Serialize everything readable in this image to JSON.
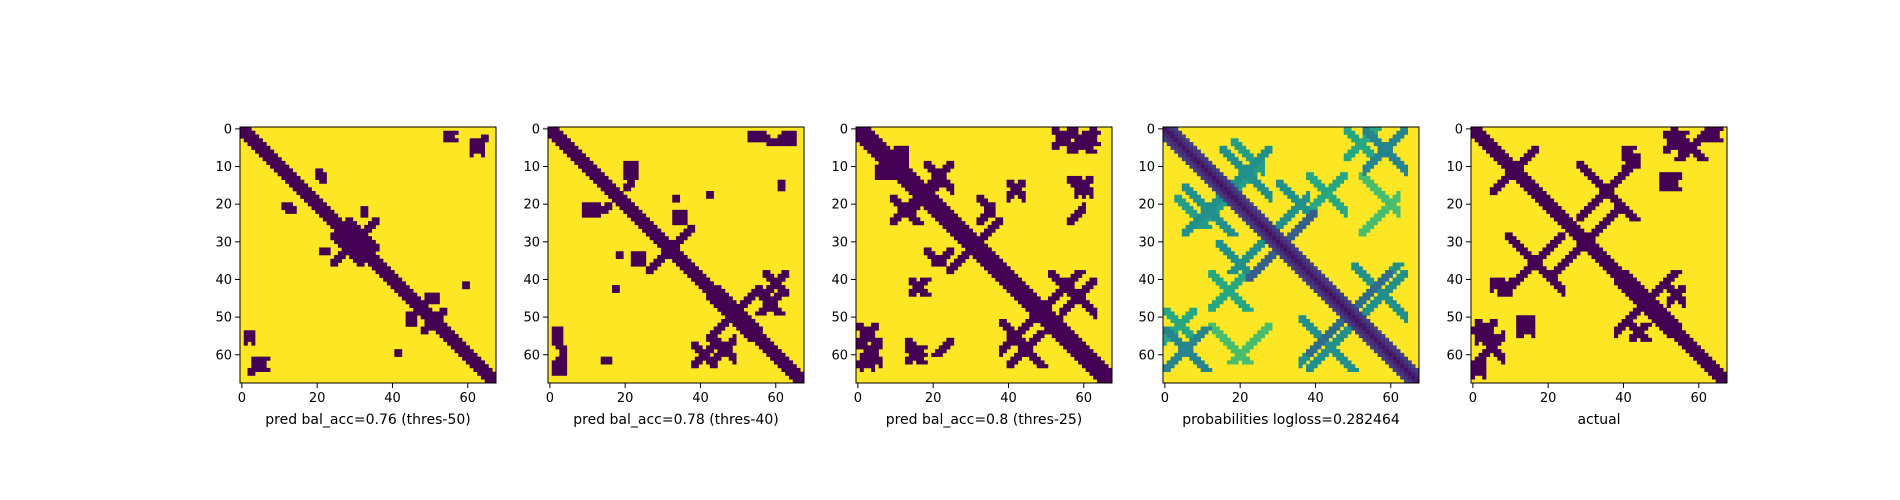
{
  "figure": {
    "background": "#ffffff",
    "colormap": "viridis",
    "colors": {
      "low": "#440154",
      "high": "#fde725",
      "axis": "#000000"
    }
  },
  "chart_data": [
    {
      "type": "heatmap",
      "xlabel": "pred bal_acc=0.76 (thres-50)",
      "grid_size": 68,
      "xlim": [
        -0.5,
        67.5
      ],
      "ylim": [
        67.5,
        -0.5
      ],
      "x_ticks": [
        0,
        20,
        40,
        60
      ],
      "y_ticks": [
        0,
        10,
        20,
        30,
        40,
        50,
        60
      ],
      "binary": true,
      "diagonal_band_width": 2,
      "contact_regions": [
        {
          "i": [
            3,
            14
          ],
          "j": [
            61,
            64
          ],
          "value": 0
        },
        {
          "i": [
            24,
            32
          ],
          "j": [
            28,
            36
          ],
          "value": 0
        },
        {
          "i": [
            12,
            14
          ],
          "j": [
            21,
            22
          ],
          "value": 0
        },
        {
          "i": [
            20,
            21
          ],
          "j": [
            11,
            13
          ],
          "value": 0
        },
        {
          "i": [
            32,
            33
          ],
          "j": [
            21,
            23
          ],
          "value": 0
        },
        {
          "i": [
            48,
            53
          ],
          "j": [
            47,
            54
          ],
          "value": 0
        },
        {
          "i": [
            54,
            57
          ],
          "j": [
            1,
            3
          ],
          "value": 0
        },
        {
          "i": [
            44,
            46
          ],
          "j": [
            49,
            52
          ],
          "value": 0
        },
        {
          "i": [
            59,
            60
          ],
          "j": [
            41,
            42
          ],
          "value": 0
        },
        {
          "i": [
            64,
            65
          ],
          "j": [
            2,
            3
          ],
          "value": 0
        }
      ]
    },
    {
      "type": "heatmap",
      "xlabel": "pred bal_acc=0.78 (thres-40)",
      "grid_size": 68,
      "xlim": [
        -0.5,
        67.5
      ],
      "ylim": [
        67.5,
        -0.5
      ],
      "x_ticks": [
        0,
        20,
        40,
        60
      ],
      "y_ticks": [
        0,
        10,
        20,
        30,
        40,
        50,
        60
      ],
      "binary": true,
      "diagonal_band_width": 2,
      "contact_regions": [
        {
          "i": [
            1,
            4
          ],
          "j": [
            56,
            63
          ],
          "value": 0
        },
        {
          "i": [
            9,
            16
          ],
          "j": [
            20,
            23
          ],
          "value": 0
        },
        {
          "i": [
            20,
            22
          ],
          "j": [
            11,
            16
          ],
          "value": 0
        },
        {
          "i": [
            26,
            33
          ],
          "j": [
            27,
            38
          ],
          "value": 0
        },
        {
          "i": [
            17,
            18
          ],
          "j": [
            42,
            43
          ],
          "value": 0
        },
        {
          "i": [
            33,
            36
          ],
          "j": [
            22,
            25
          ],
          "value": 0
        },
        {
          "i": [
            42,
            56
          ],
          "j": [
            44,
            56
          ],
          "value": 0
        },
        {
          "i": [
            43,
            49
          ],
          "j": [
            55,
            62
          ],
          "value": 0
        },
        {
          "i": [
            57,
            63
          ],
          "j": [
            38,
            44
          ],
          "value": 0
        },
        {
          "i": [
            53,
            57
          ],
          "j": [
            1,
            3
          ],
          "value": 0
        },
        {
          "i": [
            62,
            65
          ],
          "j": [
            1,
            4
          ],
          "value": 0
        },
        {
          "i": [
            33,
            34
          ],
          "j": [
            18,
            19
          ],
          "value": 0
        },
        {
          "i": [
            14,
            16
          ],
          "j": [
            61,
            62
          ],
          "value": 0
        }
      ]
    },
    {
      "type": "heatmap",
      "xlabel": "pred bal_acc=0.8 (thres-25)",
      "grid_size": 68,
      "xlim": [
        -0.5,
        67.5
      ],
      "ylim": [
        67.5,
        -0.5
      ],
      "x_ticks": [
        0,
        20,
        40,
        60
      ],
      "y_ticks": [
        0,
        10,
        20,
        30,
        40,
        50,
        60
      ],
      "binary": true,
      "diagonal_band_width": 3,
      "contact_regions": [
        {
          "i": [
            0,
            6
          ],
          "j": [
            56,
            63
          ],
          "value": 0
        },
        {
          "i": [
            9,
            18
          ],
          "j": [
            18,
            25
          ],
          "value": 0
        },
        {
          "i": [
            19,
            23
          ],
          "j": [
            10,
            17
          ],
          "value": 0
        },
        {
          "i": [
            24,
            35
          ],
          "j": [
            24,
            38
          ],
          "value": 0
        },
        {
          "i": [
            32,
            36
          ],
          "j": [
            18,
            25
          ],
          "value": 0
        },
        {
          "i": [
            14,
            20
          ],
          "j": [
            40,
            44
          ],
          "value": 0
        },
        {
          "i": [
            13,
            20
          ],
          "j": [
            58,
            62
          ],
          "value": 0
        },
        {
          "i": [
            40,
            58
          ],
          "j": [
            40,
            57
          ],
          "value": 0
        },
        {
          "i": [
            40,
            52
          ],
          "j": [
            54,
            63
          ],
          "value": 0
        },
        {
          "i": [
            51,
            62
          ],
          "j": [
            38,
            46
          ],
          "value": 0
        },
        {
          "i": [
            52,
            58
          ],
          "j": [
            0,
            5
          ],
          "value": 0
        },
        {
          "i": [
            60,
            67
          ],
          "j": [
            1,
            4
          ],
          "value": 0
        },
        {
          "i": [
            56,
            60
          ],
          "j": [
            13,
            25
          ],
          "value": 0
        },
        {
          "i": [
            5,
            9
          ],
          "j": [
            10,
            13
          ],
          "value": 0
        }
      ]
    },
    {
      "type": "heatmap",
      "xlabel": "probabilities logloss=0.282464",
      "grid_size": 68,
      "xlim": [
        -0.5,
        67.5
      ],
      "ylim": [
        67.5,
        -0.5
      ],
      "x_ticks": [
        0,
        20,
        40,
        60
      ],
      "y_ticks": [
        0,
        10,
        20,
        30,
        40,
        50,
        60
      ],
      "binary": false,
      "diagonal_band_width": 3,
      "contact_regions": [
        {
          "i": [
            0,
            20
          ],
          "j": [
            53,
            64
          ],
          "value": 0.45
        },
        {
          "i": [
            5,
            22
          ],
          "j": [
            15,
            28
          ],
          "value": 0.5
        },
        {
          "i": [
            18,
            26
          ],
          "j": [
            3,
            17
          ],
          "value": 0.55
        },
        {
          "i": [
            22,
            38
          ],
          "j": [
            22,
            40
          ],
          "value": 0.3
        },
        {
          "i": [
            30,
            38
          ],
          "j": [
            14,
            26
          ],
          "value": 0.5
        },
        {
          "i": [
            12,
            24
          ],
          "j": [
            38,
            48
          ],
          "value": 0.6
        },
        {
          "i": [
            38,
            60
          ],
          "j": [
            38,
            60
          ],
          "value": 0.35
        },
        {
          "i": [
            38,
            52
          ],
          "j": [
            52,
            64
          ],
          "value": 0.5
        },
        {
          "i": [
            50,
            63
          ],
          "j": [
            36,
            48
          ],
          "value": 0.5
        },
        {
          "i": [
            48,
            66
          ],
          "j": [
            0,
            8
          ],
          "value": 0.6
        },
        {
          "i": [
            52,
            62
          ],
          "j": [
            12,
            28
          ],
          "value": 0.7
        }
      ]
    },
    {
      "type": "heatmap",
      "xlabel": "actual",
      "grid_size": 68,
      "xlim": [
        -0.5,
        67.5
      ],
      "ylim": [
        67.5,
        -0.5
      ],
      "x_ticks": [
        0,
        20,
        40,
        60
      ],
      "y_ticks": [
        0,
        10,
        20,
        30,
        40,
        50,
        60
      ],
      "binary": true,
      "diagonal_band_width": 2,
      "contact_regions": [
        {
          "i": [
            0,
            8
          ],
          "j": [
            53,
            63
          ],
          "value": 0
        },
        {
          "i": [
            5,
            17
          ],
          "j": [
            6,
            17
          ],
          "value": 0
        },
        {
          "i": [
            7,
            10
          ],
          "j": [
            40,
            44
          ],
          "value": 0
        },
        {
          "i": [
            12,
            16
          ],
          "j": [
            50,
            55
          ],
          "value": 0
        },
        {
          "i": [
            20,
            34
          ],
          "j": [
            20,
            40
          ],
          "value": 0
        },
        {
          "i": [
            28,
            56
          ],
          "j": [
            9,
            24
          ],
          "value": 0
        },
        {
          "i": [
            40,
            58
          ],
          "j": [
            38,
            52
          ],
          "value": 0
        },
        {
          "i": [
            42,
            47
          ],
          "j": [
            52,
            56
          ],
          "value": 0
        },
        {
          "i": [
            40,
            48
          ],
          "j": [
            5,
            7
          ],
          "value": 0
        },
        {
          "i": [
            50,
            55
          ],
          "j": [
            12,
            15
          ],
          "value": 0
        },
        {
          "i": [
            51,
            59
          ],
          "j": [
            1,
            6
          ],
          "value": 0
        },
        {
          "i": [
            62,
            67
          ],
          "j": [
            0,
            3
          ],
          "value": 0
        }
      ]
    }
  ]
}
